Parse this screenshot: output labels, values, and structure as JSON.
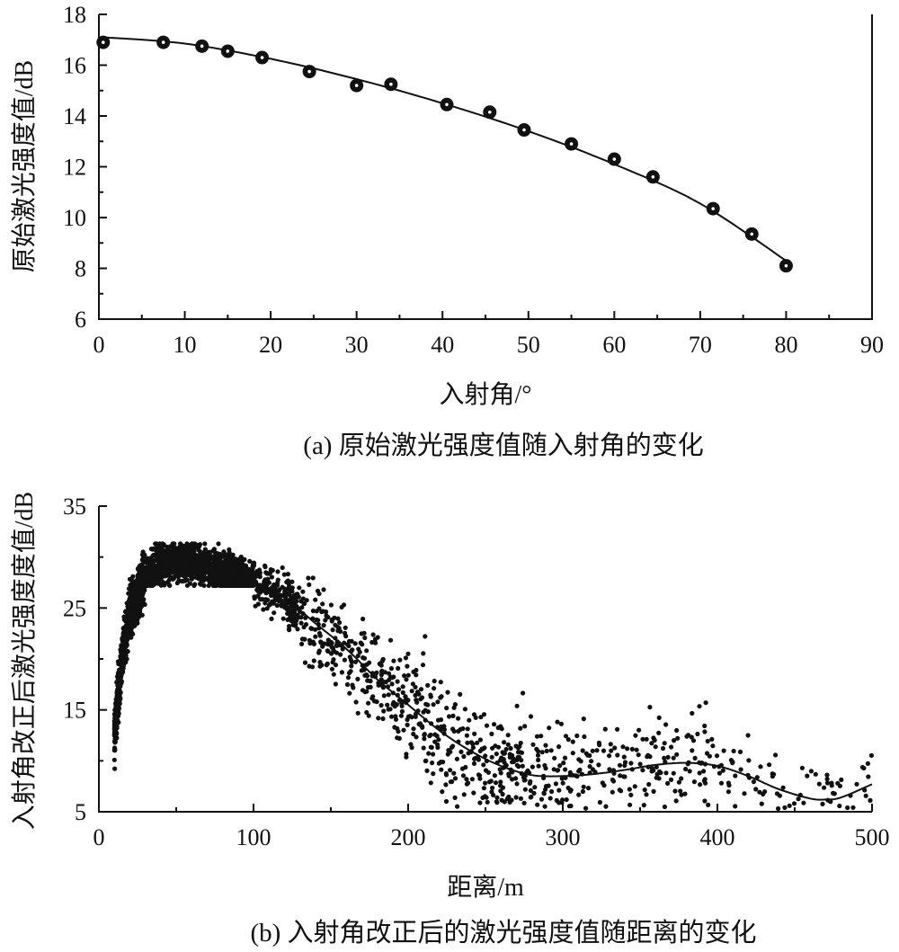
{
  "chart_data": [
    {
      "id": "a",
      "type": "scatter",
      "caption": "(a) 原始激光强度值随入射角的变化",
      "xlabel": "入射角/°",
      "ylabel": "原始激光强度值/dB",
      "xlim": [
        0,
        90
      ],
      "ylim": [
        6,
        18
      ],
      "xticks": [
        0,
        10,
        20,
        30,
        40,
        50,
        60,
        70,
        80,
        90
      ],
      "yticks": [
        6,
        8,
        10,
        12,
        14,
        16,
        18
      ],
      "grid": false,
      "series": [
        {
          "points": [
            [
              0.5,
              16.9
            ],
            [
              7.5,
              16.9
            ],
            [
              12,
              16.75
            ],
            [
              15,
              16.55
            ],
            [
              19,
              16.3
            ],
            [
              24.5,
              15.75
            ],
            [
              30,
              15.2
            ],
            [
              34,
              15.25
            ],
            [
              40.5,
              14.45
            ],
            [
              45.5,
              14.15
            ],
            [
              49.5,
              13.45
            ],
            [
              55,
              12.9
            ],
            [
              60,
              12.3
            ],
            [
              64.5,
              11.6
            ],
            [
              71.5,
              10.35
            ],
            [
              76,
              9.35
            ],
            [
              80,
              8.1
            ]
          ]
        }
      ],
      "fit": [
        [
          0.5,
          17.1
        ],
        [
          10,
          16.85
        ],
        [
          20,
          16.25
        ],
        [
          30,
          15.45
        ],
        [
          40,
          14.5
        ],
        [
          50,
          13.4
        ],
        [
          60,
          12.1
        ],
        [
          70,
          10.55
        ],
        [
          80,
          8.3
        ]
      ]
    },
    {
      "id": "b",
      "type": "scatter",
      "caption": "(b) 入射角改正后的激光强度值随距离的变化",
      "xlabel": "距离/m",
      "ylabel": "入射角改正后激光强度度值/dB",
      "xlim": [
        0,
        500
      ],
      "ylim": [
        5,
        35
      ],
      "xticks": [
        0,
        100,
        200,
        300,
        400,
        500
      ],
      "yticks": [
        5,
        15,
        25,
        35
      ],
      "grid": false,
      "fit": [
        [
          10,
          12.5
        ],
        [
          15,
          20
        ],
        [
          20,
          24.5
        ],
        [
          30,
          28
        ],
        [
          40,
          29.2
        ],
        [
          50,
          29.6
        ],
        [
          60,
          29.5
        ],
        [
          80,
          28.6
        ],
        [
          100,
          27.6
        ],
        [
          120,
          26
        ],
        [
          140,
          23.5
        ],
        [
          160,
          21
        ],
        [
          180,
          18
        ],
        [
          200,
          15.5
        ],
        [
          220,
          13
        ],
        [
          240,
          11
        ],
        [
          260,
          9.5
        ],
        [
          280,
          8.6
        ],
        [
          300,
          8.5
        ],
        [
          320,
          8.7
        ],
        [
          340,
          9.1
        ],
        [
          360,
          9.6
        ],
        [
          380,
          9.8
        ],
        [
          400,
          9.5
        ],
        [
          420,
          8.5
        ],
        [
          440,
          7.2
        ],
        [
          460,
          6.3
        ],
        [
          470,
          6.2
        ],
        [
          480,
          6.4
        ],
        [
          500,
          7.7
        ]
      ],
      "scatter_approximation": {
        "seed": 20240611,
        "segments": [
          {
            "x_range": [
              10,
              30
            ],
            "count": 900,
            "spread": 2.0
          },
          {
            "x_range": [
              30,
              100
            ],
            "count": 1400,
            "spread": 1.6
          },
          {
            "x_range": [
              100,
              130
            ],
            "count": 200,
            "spread": 1.8
          },
          {
            "x_range": [
              130,
              200
            ],
            "count": 260,
            "spread": 3.5
          },
          {
            "x_range": [
              200,
              300
            ],
            "count": 330,
            "spread": 5.0
          },
          {
            "x_range": [
              300,
              400
            ],
            "count": 190,
            "spread": 4.0
          },
          {
            "x_range": [
              400,
              500
            ],
            "count": 95,
            "spread": 3.5
          }
        ]
      }
    }
  ]
}
